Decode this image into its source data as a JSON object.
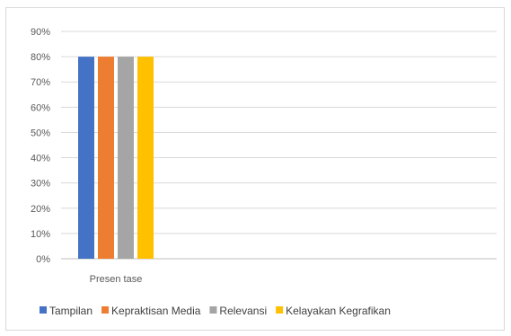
{
  "chart_data": {
    "type": "bar",
    "categories": [
      "Presen tase"
    ],
    "series": [
      {
        "name": "Tampilan",
        "values": [
          80
        ],
        "color": "#4472C4"
      },
      {
        "name": "Kepraktisan Media",
        "values": [
          80
        ],
        "color": "#ED7D31"
      },
      {
        "name": "Relevansi",
        "values": [
          80
        ],
        "color": "#A5A5A5"
      },
      {
        "name": "Kelayakan Kegrafikan",
        "values": [
          80
        ],
        "color": "#FFC000"
      }
    ],
    "yticks": [
      "0%",
      "10%",
      "20%",
      "30%",
      "40%",
      "50%",
      "60%",
      "70%",
      "80%",
      "90%"
    ],
    "ylim": [
      0,
      90
    ],
    "grid": true,
    "legend_position": "bottom",
    "title": "",
    "xlabel": "",
    "ylabel": ""
  }
}
